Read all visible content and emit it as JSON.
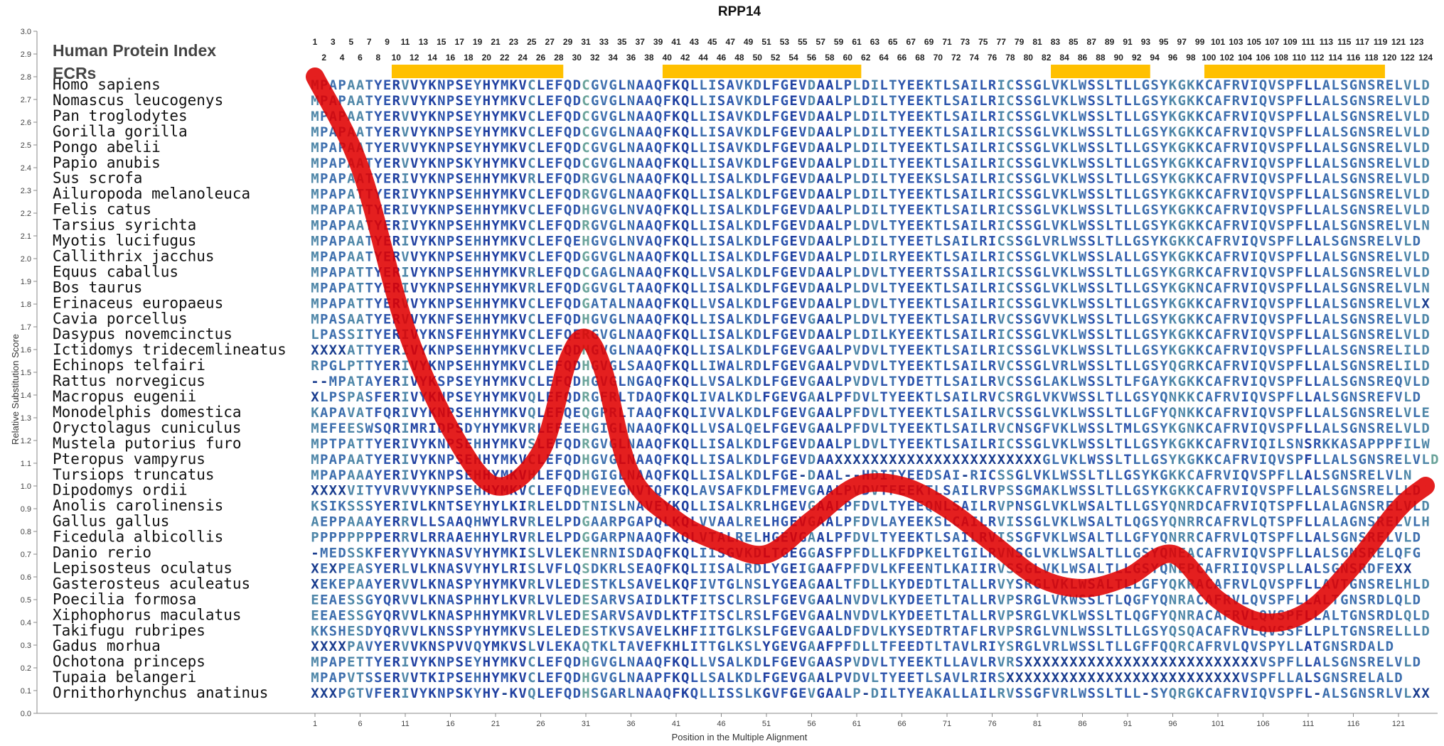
{
  "chart_data": {
    "type": "line",
    "title": "RPP14",
    "xlabel": "Position in the Multiple Alignment",
    "ylabel": "Relative Substitution Score",
    "ylim": [
      0.0,
      3.0
    ],
    "y_ticks": [
      "0.0",
      "0.1",
      "0.2",
      "0.3",
      "0.4",
      "0.5",
      "0.6",
      "0.7",
      "0.8",
      "0.9",
      "1.0",
      "1.1",
      "1.2",
      "1.3",
      "1.4",
      "1.5",
      "1.6",
      "1.7",
      "1.8",
      "1.9",
      "2.0",
      "2.1",
      "2.2",
      "2.3",
      "2.4",
      "2.5",
      "2.6",
      "2.7",
      "2.8",
      "2.9",
      "3.0"
    ],
    "x_ticks": [
      "1",
      "6",
      "11",
      "16",
      "21",
      "26",
      "31",
      "36",
      "41",
      "46",
      "51",
      "56",
      "61",
      "66",
      "71",
      "76",
      "81",
      "86",
      "91",
      "96",
      "101",
      "106",
      "111",
      "116",
      "121"
    ],
    "header_label": "Human Protein Index",
    "ecr_label": "ECRs",
    "ecr_regions": [
      [
        10,
        28
      ],
      [
        40,
        61
      ],
      [
        83,
        93
      ],
      [
        100,
        119
      ]
    ],
    "ecr_color": "#ffc000",
    "line_color": "#e00000",
    "series": [
      {
        "x": [
          1,
          6,
          11,
          16,
          21,
          26,
          29,
          31,
          33,
          36,
          41,
          46,
          51,
          56,
          61,
          66,
          71,
          76,
          81,
          86,
          91,
          96,
          101,
          106,
          111,
          116,
          121,
          124
        ],
        "y": [
          2.8,
          2.4,
          1.7,
          1.25,
          1.0,
          1.15,
          1.55,
          1.65,
          1.5,
          1.05,
          0.85,
          0.75,
          0.7,
          0.85,
          1.0,
          1.0,
          0.9,
          0.75,
          0.6,
          0.55,
          0.6,
          0.7,
          0.5,
          0.4,
          0.45,
          0.65,
          0.9,
          1.0
        ]
      }
    ],
    "species": [
      "Homo sapiens",
      "Nomascus leucogenys",
      "Pan troglodytes",
      "Gorilla gorilla",
      "Pongo abelii",
      "Papio anubis",
      "Sus scrofa",
      "Ailuropoda melanoleuca",
      "Felis catus",
      "Tarsius syrichta",
      "Myotis lucifugus",
      "Callithrix jacchus",
      "Equus caballus",
      "Bos taurus",
      "Erinaceus europaeus",
      "Cavia porcellus",
      "Dasypus novemcinctus",
      "Ictidomys tridecemlineatus",
      "Echinops telfairi",
      "Rattus norvegicus",
      "Macropus eugenii",
      "Monodelphis domestica",
      "Oryctolagus cuniculus",
      "Mustela putorius furo",
      "Pteropus vampyrus",
      "Tursiops truncatus",
      "Dipodomys ordii",
      "Anolis carolinensis",
      "Gallus gallus",
      "Ficedula albicollis",
      "Danio rerio",
      "Lepisosteus oculatus",
      "Gasterosteus aculeatus",
      "Poecilia formosa",
      "Xiphophorus maculatus",
      "Takifugu rubripes",
      "Gadus morhua",
      "Ochotona princeps",
      "Tupaia belangeri",
      "Ornithorhynchus anatinus"
    ],
    "sequences": [
      "MPAPAATYERVVYKNPSEYHYMKVCLEFQDCGVGLNAAQFKQLLISAVKDLFGEVDAALPLDILTYEEKTLSAILRICSSGLVKLWSSLTLLGSYKGKKCAFRVIQVSPFLLALSGNSRELVLD",
      "MPAPAATYERVVYKNPSEYHYMKVCLEFQDCGVGLNAAQFKQLLISAVKDLFGEVDAALPLDILTYEEKTLSAILRICSSGLVKLWSSLTLLGSYKGKKCAFRVIQVSPFLLALSGNSRELVLD",
      "MPAPAATYERVVYKNPSEYHYMKVCLEFQDCGVGLNAAQFKQLLISAVKDLFGEVDAALPLDILTYEEKTLSAILRICSSGLVKLWSSLTLLGSYKGKKCAFRVIQVSPFLLALSGNSRELVLD",
      "MPAPAATYERVVYKNPSEYHYMKVCLEFQDCGVGLNAAQFKQLLISAVKDLFGEVDAALPLDILTYEEKTLSAILRICSSGLVKLWSSLTLLGSYKGKKCAFRVIQVSPFLLALSGNSRELVLD",
      "MPAPAATYERVVYKNPSEYHYMKVCLEFQDCGVGLNAAQFKQLLISAVKDLFGEVDAALPLDILTYEEKTLSAILRICSSGLVKLWSSLTLLGSYKGKKCAFRVIQVSPFLLALSGNSRELVLD",
      "MPAPAATYERVVYKNPSKYHYMKVCLEFQDCGVGLNAAQFKQLLISAVKDLFGEVDAALPLDILTYEEKTLSAILRICSSGLVKLWSSLTLLGSYKGKKCAFRVIQVSPFLLALSGNSRELVLD",
      "MPAPAATYERIVYKNPSEHHYMKVRLEFQDRGVGLNAAQFKQLLISALKDLFGEVDAALPLDILTYEEKSLSAILRICSSGLVKLWSSLTLLGSYKGKKCAFRVIQVSPFLLALSGNSRELVLD",
      "MPAPATTYERIVYKNPSEHHYMKVCLEFQDRGVGLNAAQFKQLLISALKDLFGEVDAALPLDILTYEEKTLSAILRICSSGLVKLWSSLTLLGSYKGKKCAFRVIQVSPFLLALSGNSRELVLD",
      "MPAPATTYERIVYKNPSEHHYMKVCLEFQDHGVGLNVAQFKQLLISALKDLFGEVDAALPLDILTYEEKTLSAILRICSSGLVKLWSSLTLLGSYKGKKCAFRVIQVSPFLLALSGNSRELVLD",
      "MPAPAATYERIVYKNPSEHHYMKVCLEFQDRGVGLNAAQFKQLLISALKDLFGEVDAALPLDVLTYEEKTLSAILRICSSGLVKLWSSLTLLGSYKGKKCAFRVIQVSPFLLALSGNSRELVLN",
      "MPAPAATYERIVYKNPSEHHYMKVCLEFQEHGVGLNVAQFKQLLISALKDLFGEVDAALPLDILTYEETLSAILRICSSGLVRLWSSLTLLGSYKGKKCAFRVIQVSPFLLALSGNSRELVLD",
      "MPAPAATYERVVYKNPSEHHYMKVCLEFQDGGVGLNAAQFKQLLISALKDLFGEVDAALPLDILRYEEKTLSAILRICSSGLVKLWSSLALLGSYKGKKCAFRVIQVSPFLLALSGNSRELVLD",
      "MPAPATTYERIVYKNPSEHHYMKVRLEFQDCGAGLNAAQFKQLLVSALKDLFGEVDAALPLDVLTYEERTSSAILRICSSGLVKLWSSLTLLGSYKGRKCAFRVIQVSPFLLALSGNSRELVLD",
      "MPAPATTYERIVYKNPSEHHYMKVRLEFQDGGVGLTAAQFKQLLISALKDLFGEVDAALPLDVLTYEEKTLSAILRICSSGLVKLWSSLTLLGSYKGKNCAFRVIQVSPFLLALSGNSRELVLN",
      "MPAPATTYERVVYKNPSEHHYMKVCLEFQDGATALNAAQFKQLLVSALKDLFGEVDAALPLDVLTYEEKTLSAILRICSSGLVKLWSSLTLLGSYKGKKCAFRVIQVSPFLLALSGNSRELVLX",
      "MPASAATYERVVYKNFSEHHYMKVCLEFQDHGVGLNAAQFKQLLISALKDLFGEVGAALPLDVLTYEEKTLSAILRVCSSGVVKLWSSLTLLGSYKGKKCAFRVIQVSPFLLALSGNSRELVLD",
      "LPASSITYERIVYKNSFEHHYMKVCLEFQERGVGLNAAQFKQLLISALKDLFGEVDAALPLDILKYEEKTLSAILRICSSGLVKLWSSLTLLGSYKGKKCAFRVIQVSPFLLALSGNSRELVLD",
      "XXXXATTYERIVYKNPSEHHYMKVCLEFQDHGVGLNAAQFKQLLISALKDLFGEVGAALPVDVLTYEEKTLSAILRICSSGLVKLWSSLTLLGSYKGKKCAFRVIQVSPFLLALSGNSRELILD",
      "RPGLPTTYERIVYKNPSEHHYMKVCLEFQDHGVGLSAAQFKQLLIWALRDLFGEVGAALPVDVLTYEEKTLSAILRVCSSGLVRLWSSLTLLGSYQGRKCAFRVIQVSPFLLALSGNSRELILD",
      "--MPATAYERIVYKSPSEYHYMKVCLEFQDHGVGLNGAQFKQLLVSALKDLFGEVGAALPVDVLTYDETTLSAILRVCSSGLAKLWSSLTLFGAYKGKKCAFRVIQVSPFLLALSGNSREQVLD",
      "XLPSPASFERIVYKNPSEYHYMKVQLEFQDRGFRLTDAQFKQLIVALKDLFGEVGAALPFDVLTYEEKTLSAILRVCSRGLVKVWSSLTLLGSYQNKKCAFRVIQVSPFLLALSGNSREFVLD",
      "KAPAVATFQRIVYKNPSEHHYMKVQLEFQEQGPRLTAAQFKQLIVVALKDLFGEVGAALPFDVLTYEEKTLSAILRVCSSGLVKLWSSLTLLGFYQNKKCAFRVIQVSPFLLALSGNSRELVLE",
      "MEFEESWSQRIMRIDPSDYHYMKVRLEFEEHGIGLNAAQFKQLLVSALQELFGEVGAALPFDVLTYEEKTLSAILRVCNSGFVKLWSSLTMLGSYKGNKCAFRVIQVSPFLLALSGNSRELVLD",
      "MPTPATTYERIVYKNPSEHHYMKVSLEFQDRGVGLNAAQFKQLLISALKDLFGEVDAALPLDVLTYEEKTLSAILRICSSGLVKLWSSLTLLGSYKGKKCAFRVIQILSNSRKKASAPPPFILW",
      "MPAPAATYERIVYKNPSEHHYMKVCLEFQDHGVGLNAAQFKQLLISALKDLFGEVDAAXXXXXXXXXXXXXXXXXXXXXXXGLVKLWSSLTLLGSYKGKKCAFRVIQVSPFLLALSGNSRELVLD",
      "MPAPAAAYERIVYKNPSEHHYMKVHLEFQDHGIGLNAAQFKQLLISALKDLFGE-DAAL--HDITYEEDSAI-RICSSGLVKLWSSLTLLGSYKGKKCAFRVIQVSPFLLALSGNSRELVLN",
      "XXXXVITYVRVVYKNPSEHHYMKVCLEFQDHEVEGNVTQFKQLAVSAFKDLFMEVGAALPVDVTFEEKTLSAILRVPSSGMAKLWSSLTLLGSYKGKKCAFRVIQVSPFLLALSGNSRELLLD",
      "KSIKSSSYERIVLKNTSEYHYLKIRLELDDTNISLNAVEYKQLLISALKRLHGEVGAALPFDVLTYEEQNLSAILRVPNSGLVKLWSALTLLGSYQNRDCAFRVIQTSPFLLALAGNSRELVLD",
      "AEPPAAAYERRVLLSAAQHWYLRVRLELPDGAARPGAPQLKQLVVAALRELHGEVGAALPFDVLAYEEKSLCAILRVISSGLVKLWSALTLQGSYQNRRCAFRVLQTSPFLLALAGNSRELVLH",
      "PPPPPPPPERRVLRRAAEHHYLRVRLELPDGGARPNAAQFKQLVTALRELHGEVGAALPFDVLTYEEKTLSAILRVISSGFVKLWSALTLLGFYQNRRCAFRVLQTSPFLLALSGNSRELVLD",
      "-MEDSSKFERYVYKNASVYHYMKISLVLEKENRNISDAQFKQLIISGVKDLTGEGGASFPFDLLKFDPKELTGILRVNSGLVKLWSALTLLGSYQNEACAFRVIQVSPFLLALSGNSRELQFG",
      "XEXPEASYERLVLKNASVYHYLRISLVFLQSDKRLSEAQFKQLIISALRDLYGEIGAAFPFDVLKFEENTLKAIIRVSSGLVKLWSALTLLGSYQNEPCAFRIIQVSPLLALSGNSRDFEXX",
      "XEKEPAAYERVVLKNASPYHYMKVRLVLEDESTKLSAVELKQFIVTGLNSLYGEAGAALTFDLLKYDEDTLTALLRVYSRGLVKLWSALTLLGFYQKRACAFRVLQVSPFLLAVTGNSRELHLD",
      "EEAESSGYQRVVLKNASPHHYLKVRLVLEDESARVSAIDLKTFITSCLRSLFGEVGAALNVDVLKYDEETLTALLRVPSRGLVKWSSLTLQGFYQNRACAFRVLQVSPFLLALTGNSRDLQLD",
      "EEAESSGYQRVVLKNASPHHYMKVRLVLEDESARVSAVDLKTFITSCLRSLFGEVGAALNVDVLKYDEETLTALLRVPSRGLVKLWSSLTLQGFYQNRACAFRVLQVSPFLLALTGNSRDLQLD",
      "KKSHESDYQRVVLKNSSPYHYMKVSLELEDESTKVSAVELKHFIITGLKSLFGEVGAALDFDVLKYSEDTRTAFLRVPSRGLVNLWSSLTLLGSYQSQACAFRVLQVSSFLLPLTGNSRELLLD",
      "XXXXPAVYERVVKNSPVVQYMKVSLVLEKAQTKLTAVEFKHLITTGLKSLYGEVGAAFPFDLLTFEEDTLTAVLRIYSRGLVRLWSSLTLLGFFQQRCAFRVLQVSPYLLATGNSRDALD",
      "MPAPETTYERIVYKNPSEYHYMKVCLEFQDHGVGLNAAQFKQLLVSALKDLFGEVGAASPVDVLTYEEKTLLAVLRVRSXXXXXXXXXXXXXXXXXXXXXXXXXXVSPFLLALSGNSRELVLD",
      "MPAPVTSSERVVTKIPSEHHYMKVCLEFQDHGVGLNAAPFKQLLSALKDLFGEVGAALPVDVLTYEETLSAVLRIRSXXXXXXXXXXXXXXXXXXXXXXXXXXVSPFLLALSGNSRELALD",
      "XXXPGTVFERIVYKNPSKYHY-KVQLEFQDHSGARLNAAQFKQLLISSLKGVFGEVGAALP-DILTYEAKALLAILRVSSGFVRLWSSLTLL-SYQRGKCAFRVIQVSPFL-ALSGNSRLVLXX"
    ]
  }
}
